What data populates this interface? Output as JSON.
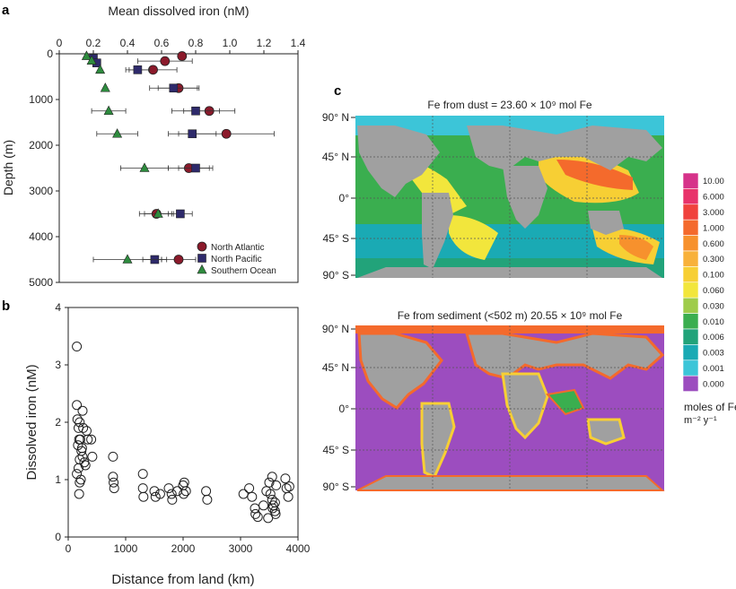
{
  "chart_data": [
    {
      "panel": "a",
      "type": "scatter",
      "xlabel": "Mean dissolved iron (nM)",
      "ylabel": "Depth (m)",
      "xlim": [
        0,
        1.4
      ],
      "ylim": [
        0,
        5000
      ],
      "x_ticks": [
        "0",
        "0.2",
        "0.4",
        "0.6",
        "0.8",
        "1.0",
        "1.2",
        "1.4"
      ],
      "y_ticks": [
        "0",
        "1000",
        "2000",
        "3000",
        "4000",
        "5000"
      ],
      "legend": "bottom-right",
      "series": [
        {
          "name": "North Atlantic",
          "marker": "circle",
          "color": "#8b1a2b",
          "points": [
            {
              "x": 0.72,
              "y": 50,
              "err": 0
            },
            {
              "x": 0.62,
              "y": 160,
              "err": 0.16
            },
            {
              "x": 0.55,
              "y": 350,
              "err": 0.14
            },
            {
              "x": 0.7,
              "y": 750,
              "err": 0.12
            },
            {
              "x": 0.88,
              "y": 1250,
              "err": 0.15
            },
            {
              "x": 0.98,
              "y": 1750,
              "err": 0.28
            },
            {
              "x": 0.76,
              "y": 2500,
              "err": 0.12
            },
            {
              "x": 0.57,
              "y": 3500,
              "err": 0.1
            },
            {
              "x": 0.7,
              "y": 4500,
              "err": 0.1
            }
          ]
        },
        {
          "name": "North Pacific",
          "marker": "square",
          "color": "#2e2a6b",
          "points": [
            {
              "x": 0.2,
              "y": 100,
              "err": 0
            },
            {
              "x": 0.22,
              "y": 200,
              "err": 0
            },
            {
              "x": 0.46,
              "y": 350,
              "err": 0.07
            },
            {
              "x": 0.67,
              "y": 750,
              "err": 0.14
            },
            {
              "x": 0.8,
              "y": 1250,
              "err": 0.14
            },
            {
              "x": 0.78,
              "y": 1750,
              "err": 0.14
            },
            {
              "x": 0.8,
              "y": 2500,
              "err": 0.1
            },
            {
              "x": 0.71,
              "y": 3500,
              "err": 0.07
            },
            {
              "x": 0.56,
              "y": 4500,
              "err": 0.07
            }
          ]
        },
        {
          "name": "Southern Ocean",
          "marker": "triangle",
          "color": "#2e8b3e",
          "points": [
            {
              "x": 0.16,
              "y": 50,
              "err": 0
            },
            {
              "x": 0.19,
              "y": 150,
              "err": 0
            },
            {
              "x": 0.24,
              "y": 350,
              "err": 0
            },
            {
              "x": 0.27,
              "y": 750,
              "err": 0
            },
            {
              "x": 0.29,
              "y": 1250,
              "err": 0.1
            },
            {
              "x": 0.34,
              "y": 1750,
              "err": 0.12
            },
            {
              "x": 0.5,
              "y": 2500,
              "err": 0.14
            },
            {
              "x": 0.58,
              "y": 3500,
              "err": 0.08
            },
            {
              "x": 0.4,
              "y": 4500,
              "err": 0.2
            }
          ]
        }
      ]
    },
    {
      "panel": "b",
      "type": "scatter",
      "xlabel": "Distance from land (km)",
      "ylabel": "Dissolved iron (nM)",
      "xlim": [
        0,
        4000
      ],
      "ylim": [
        0,
        4
      ],
      "x_ticks": [
        "0",
        "1000",
        "2000",
        "3000",
        "4000"
      ],
      "y_ticks": [
        "0",
        "1",
        "2",
        "3",
        "4"
      ],
      "x_tick_values": [
        0,
        1000,
        2000,
        3000,
        4000
      ],
      "y_tick_values": [
        0,
        1,
        2,
        3,
        4
      ],
      "points": [
        [
          150,
          3.32
        ],
        [
          150,
          2.3
        ],
        [
          160,
          2.05
        ],
        [
          180,
          1.9
        ],
        [
          200,
          2.0
        ],
        [
          210,
          1.7
        ],
        [
          250,
          2.2
        ],
        [
          260,
          1.9
        ],
        [
          190,
          1.7
        ],
        [
          170,
          1.6
        ],
        [
          230,
          1.5
        ],
        [
          200,
          1.35
        ],
        [
          180,
          1.2
        ],
        [
          150,
          1.1
        ],
        [
          220,
          1.0
        ],
        [
          200,
          0.95
        ],
        [
          190,
          0.75
        ],
        [
          250,
          1.4
        ],
        [
          280,
          1.3
        ],
        [
          300,
          1.25
        ],
        [
          320,
          1.85
        ],
        [
          340,
          1.7
        ],
        [
          400,
          1.7
        ],
        [
          420,
          1.4
        ],
        [
          240,
          1.55
        ],
        [
          780,
          1.05
        ],
        [
          790,
          0.95
        ],
        [
          800,
          0.85
        ],
        [
          780,
          1.4
        ],
        [
          1300,
          1.1
        ],
        [
          1300,
          0.85
        ],
        [
          1310,
          0.7
        ],
        [
          1500,
          0.8
        ],
        [
          1520,
          0.7
        ],
        [
          1600,
          0.75
        ],
        [
          1750,
          0.85
        ],
        [
          1800,
          0.75
        ],
        [
          1810,
          0.65
        ],
        [
          1900,
          0.8
        ],
        [
          2000,
          0.9
        ],
        [
          2010,
          0.75
        ],
        [
          2020,
          0.95
        ],
        [
          2050,
          0.8
        ],
        [
          2400,
          0.8
        ],
        [
          2420,
          0.65
        ],
        [
          3050,
          0.75
        ],
        [
          3150,
          0.85
        ],
        [
          3200,
          0.7
        ],
        [
          3250,
          0.5
        ],
        [
          3260,
          0.4
        ],
        [
          3300,
          0.35
        ],
        [
          3400,
          0.55
        ],
        [
          3450,
          0.8
        ],
        [
          3500,
          0.95
        ],
        [
          3520,
          0.75
        ],
        [
          3550,
          1.05
        ],
        [
          3550,
          0.65
        ],
        [
          3560,
          0.5
        ],
        [
          3570,
          0.55
        ],
        [
          3600,
          0.6
        ],
        [
          3600,
          0.45
        ],
        [
          3610,
          0.4
        ],
        [
          3620,
          0.9
        ],
        [
          3480,
          0.33
        ],
        [
          3780,
          1.02
        ],
        [
          3800,
          0.85
        ],
        [
          3850,
          0.88
        ],
        [
          3830,
          0.7
        ]
      ]
    },
    {
      "panel": "c",
      "type": "heatmap",
      "maps": [
        {
          "title": "Fe from dust = 23.60 × 10⁹ mol Fe"
        },
        {
          "title": "Fe from sediment (<502 m) 20.55 × 10⁹ mol Fe"
        }
      ],
      "lat_labels": [
        "90° N",
        "45° N",
        "0°",
        "45° S",
        "90° S"
      ],
      "colorbar": {
        "labels": [
          "10.00",
          "6.000",
          "3.000",
          "1.000",
          "0.600",
          "0.300",
          "0.100",
          "0.060",
          "0.030",
          "0.010",
          "0.006",
          "0.003",
          "0.001",
          "0.000"
        ],
        "colors": [
          "#d6338a",
          "#e8336b",
          "#f0423d",
          "#f46a2c",
          "#f7912d",
          "#f8b13a",
          "#f7cf34",
          "#f2e63c",
          "#9fcc4b",
          "#3aae4f",
          "#22a37a",
          "#1aaab4",
          "#3cc5d8",
          "#9c4dbf"
        ],
        "unit_line1": "moles of Fe",
        "unit_line2": "m⁻² y⁻¹"
      }
    }
  ],
  "panel_labels": {
    "a": "a",
    "b": "b",
    "c": "c"
  }
}
